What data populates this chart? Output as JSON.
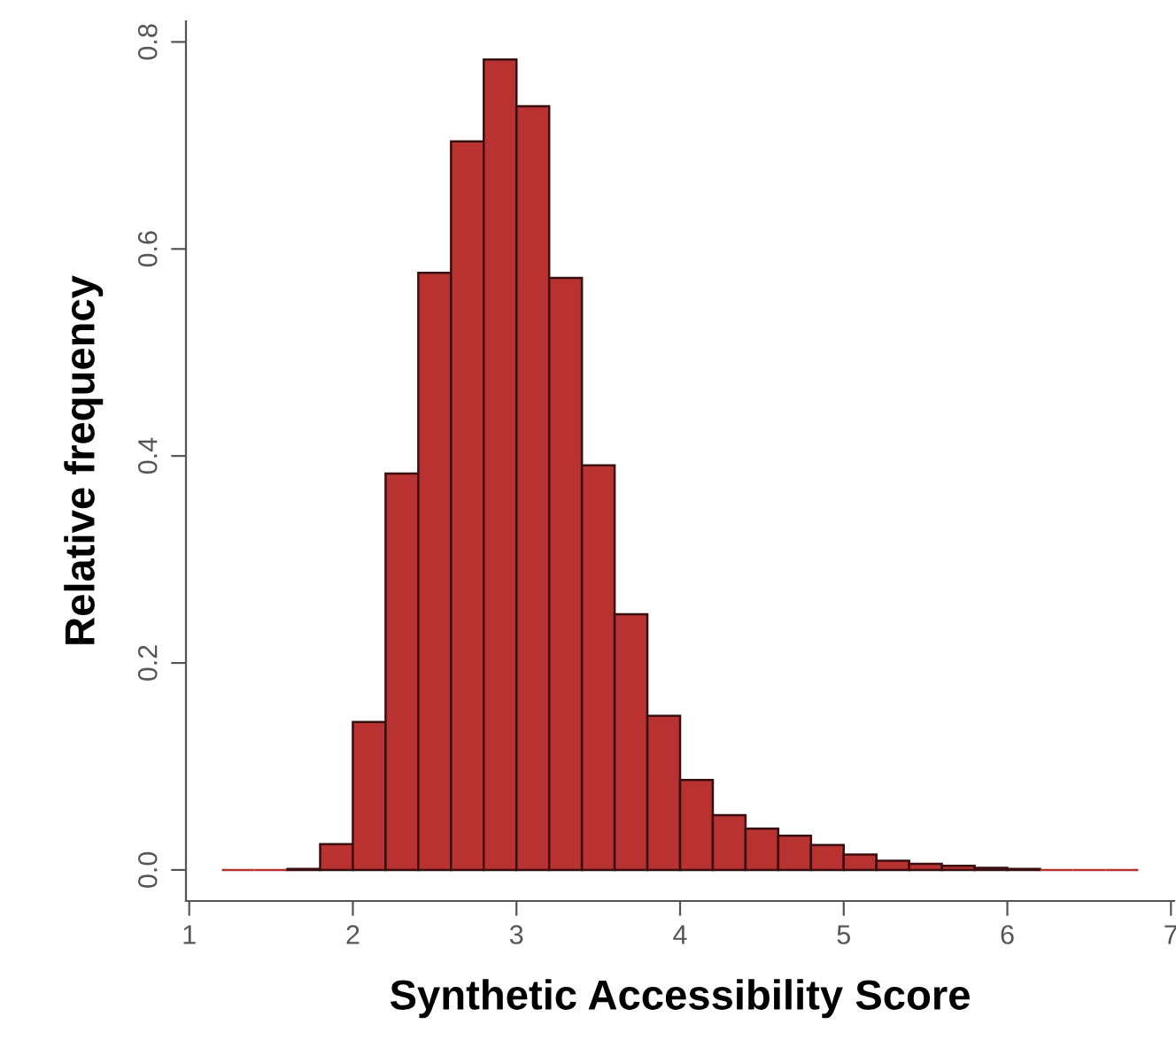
{
  "chart_data": {
    "type": "histogram",
    "xlabel": "Synthetic Accessibility Score",
    "ylabel": "Relative frequency",
    "bins": [
      1.2,
      1.4,
      1.6,
      1.8,
      2.0,
      2.2,
      2.4,
      2.6,
      2.8,
      3.0,
      3.2,
      3.4,
      3.6,
      3.8,
      4.0,
      4.2,
      4.4,
      4.6,
      4.8,
      5.0,
      5.2,
      5.4,
      5.6,
      5.8,
      6.0,
      6.2,
      6.4,
      6.6,
      6.8
    ],
    "values": [
      0,
      0,
      0.001,
      0.025,
      0.143,
      0.383,
      0.577,
      0.704,
      0.783,
      0.738,
      0.572,
      0.391,
      0.247,
      0.149,
      0.087,
      0.053,
      0.04,
      0.033,
      0.024,
      0.015,
      0.009,
      0.006,
      0.004,
      0.002,
      0.001,
      0,
      0,
      0
    ],
    "color": "#b83232",
    "xlim": [
      0.98,
      7.02
    ],
    "ylim": [
      -0.03,
      0.82
    ],
    "xticks": [
      1,
      2,
      3,
      4,
      5,
      6,
      7
    ],
    "yticks": [
      {
        "value": 0,
        "label": "0.0"
      },
      0.2,
      0.4,
      0.6,
      0.8
    ],
    "grid": false
  }
}
